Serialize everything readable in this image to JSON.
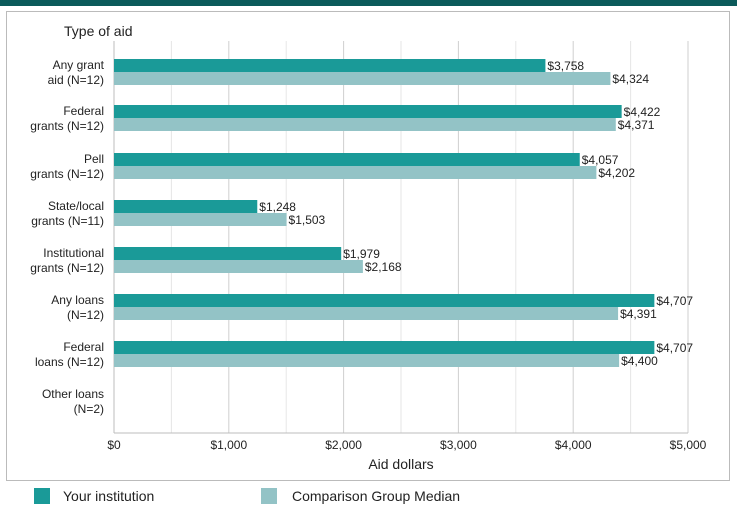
{
  "chart_data": {
    "type": "bar",
    "orientation": "horizontal",
    "title": "Type of aid",
    "xlabel": "Aid dollars",
    "xlim": [
      0,
      5000
    ],
    "x_ticks": [
      "$0",
      "$1,000",
      "$2,000",
      "$3,000",
      "$4,000",
      "$5,000"
    ],
    "x_tick_values": [
      0,
      1000,
      2000,
      3000,
      4000,
      5000
    ],
    "grid": true,
    "legend_position": "bottom",
    "categories": [
      [
        "Any grant",
        "aid (N=12)"
      ],
      [
        "Federal",
        "grants (N=12)"
      ],
      [
        "Pell",
        "grants (N=12)"
      ],
      [
        "State/local",
        "grants (N=11)"
      ],
      [
        "Institutional",
        "grants (N=12)"
      ],
      [
        "Any loans",
        "(N=12)"
      ],
      [
        "Federal",
        "loans (N=12)"
      ],
      [
        "Other loans",
        "(N=2)"
      ]
    ],
    "series": [
      {
        "name": "Your institution",
        "color": "#1a9a98",
        "values": [
          3758,
          4422,
          4057,
          1248,
          1979,
          4707,
          4707,
          null
        ],
        "labels": [
          "$3,758",
          "$4,422",
          "$4,057",
          "$1,248",
          "$1,979",
          "$4,707",
          "$4,707",
          null
        ]
      },
      {
        "name": "Comparison Group Median",
        "color": "#93c3c6",
        "values": [
          4324,
          4371,
          4202,
          1503,
          2168,
          4391,
          4400,
          null
        ],
        "labels": [
          "$4,324",
          "$4,371",
          "$4,202",
          "$1,503",
          "$2,168",
          "$4,391",
          "$4,400",
          null
        ]
      }
    ]
  },
  "colors": {
    "top_band": "#0b5a5a",
    "gridline": "#cccccc",
    "frame": "#bbbbbb"
  }
}
